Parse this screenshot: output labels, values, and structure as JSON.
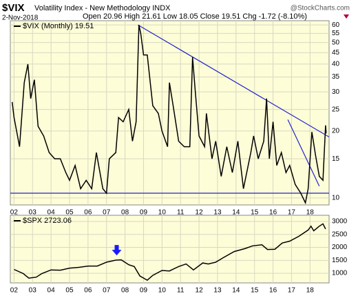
{
  "header": {
    "symbol": "$VIX",
    "name": "Volatility Index - New Methodology INDX",
    "date": "2-Nov-2018",
    "quote": "Open 20.96  High 21.61  Low 18.05  Close 19.51  Chg -1.72 (-8.10%)",
    "source": "@StockCharts.com"
  },
  "chart_data": [
    {
      "type": "line",
      "log_scale": true,
      "grid": true,
      "x": [
        2001.9,
        2002.0,
        2002.3,
        2002.55,
        2002.75,
        2002.9,
        2003.1,
        2003.3,
        2003.6,
        2003.9,
        2004.2,
        2004.5,
        2004.8,
        2005.0,
        2005.3,
        2005.6,
        2005.9,
        2006.2,
        2006.45,
        2006.8,
        2007.0,
        2007.15,
        2007.5,
        2007.65,
        2007.9,
        2008.2,
        2008.4,
        2008.6,
        2008.75,
        2008.85,
        2009.0,
        2009.2,
        2009.5,
        2009.8,
        2010.0,
        2010.3,
        2010.4,
        2010.6,
        2010.9,
        2011.2,
        2011.5,
        2011.65,
        2011.8,
        2012.0,
        2012.3,
        2012.4,
        2012.7,
        2012.9,
        2013.2,
        2013.5,
        2013.8,
        2014.1,
        2014.4,
        2014.8,
        2014.95,
        2015.2,
        2015.5,
        2015.65,
        2015.8,
        2016.0,
        2016.2,
        2016.45,
        2016.7,
        2016.9,
        2017.2,
        2017.5,
        2017.75,
        2017.9,
        2018.1,
        2018.3,
        2018.5,
        2018.7,
        2018.84,
        2018.87
      ],
      "series": [
        {
          "name": "$VIX (Monthly) 19.51",
          "color": "#000000",
          "values": [
            27,
            23,
            17,
            33,
            40,
            28,
            34,
            21,
            19,
            16,
            15,
            15,
            13,
            12,
            14,
            11,
            12,
            11,
            16,
            11,
            10.5,
            15,
            16,
            23,
            22,
            25,
            18,
            22,
            60,
            55,
            44,
            44,
            26,
            24,
            20,
            17,
            33,
            26,
            18,
            17,
            17,
            43,
            30,
            19,
            17,
            24,
            15,
            18,
            12.5,
            17,
            13,
            18,
            11,
            16,
            19,
            15,
            18,
            28,
            15,
            22,
            14,
            16,
            13,
            14,
            11.5,
            10.5,
            9.5,
            11,
            19.8,
            15.5,
            12.5,
            12,
            21.2,
            19.5
          ]
        }
      ],
      "xlim": [
        2001.8,
        2019.03
      ],
      "xticks": [
        {
          "value": 2002,
          "label": "02"
        },
        {
          "value": 2003,
          "label": "03"
        },
        {
          "value": 2004,
          "label": "04"
        },
        {
          "value": 2005,
          "label": "05"
        },
        {
          "value": 2006,
          "label": "06"
        },
        {
          "value": 2007,
          "label": "07"
        },
        {
          "value": 2008,
          "label": "08"
        },
        {
          "value": 2009,
          "label": "09"
        },
        {
          "value": 2010,
          "label": "10"
        },
        {
          "value": 2011,
          "label": "11"
        },
        {
          "value": 2012,
          "label": "12"
        },
        {
          "value": 2013,
          "label": "13"
        },
        {
          "value": 2014,
          "label": "14"
        },
        {
          "value": 2015,
          "label": "15"
        },
        {
          "value": 2016,
          "label": "16"
        },
        {
          "value": 2017,
          "label": "17"
        },
        {
          "value": 2018,
          "label": "18"
        }
      ],
      "ylim": [
        9.3,
        62.7
      ],
      "yticks": [
        10,
        15,
        20,
        25,
        30,
        35,
        40,
        45,
        50,
        55,
        60
      ],
      "trendlines": [
        {
          "color": "#2222cc",
          "x": [
            2008.7,
            2019.03
          ],
          "y": [
            60,
            18.8
          ]
        },
        {
          "color": "#2222cc",
          "x": [
            2016.8,
            2018.5
          ],
          "y": [
            22.5,
            11.3
          ]
        },
        {
          "color": "#2222cc",
          "x": [
            2001.8,
            2019.03
          ],
          "y": [
            10.5,
            10.5
          ]
        }
      ]
    },
    {
      "type": "line",
      "log_scale": false,
      "grid": true,
      "x": [
        2002.0,
        2002.5,
        2002.8,
        2003.2,
        2003.5,
        2004.0,
        2004.5,
        2005.0,
        2005.5,
        2006.0,
        2006.5,
        2007.0,
        2007.5,
        2007.8,
        2008.2,
        2008.5,
        2008.8,
        2009.2,
        2009.5,
        2010.0,
        2010.4,
        2010.9,
        2011.3,
        2011.7,
        2012.2,
        2012.5,
        2012.9,
        2013.3,
        2013.9,
        2014.5,
        2014.9,
        2015.4,
        2015.7,
        2016.1,
        2016.5,
        2016.9,
        2017.4,
        2017.9,
        2018.05,
        2018.2,
        2018.5,
        2018.7,
        2018.84
      ],
      "series": [
        {
          "name": "$SPX 2723.06",
          "color": "#000000",
          "values": [
            1150,
            990,
            815,
            850,
            990,
            1130,
            1120,
            1200,
            1230,
            1280,
            1280,
            1430,
            1510,
            1520,
            1330,
            1260,
            900,
            735,
            920,
            1110,
            1090,
            1260,
            1360,
            1130,
            1400,
            1360,
            1430,
            1600,
            1840,
            1960,
            2060,
            2100,
            1920,
            1930,
            2170,
            2240,
            2430,
            2670,
            2820,
            2640,
            2820,
            2910,
            2710
          ]
        }
      ],
      "xlim": [
        2001.8,
        2019.03
      ],
      "xticks": [
        {
          "value": 2002,
          "label": "02"
        },
        {
          "value": 2003,
          "label": "03"
        },
        {
          "value": 2004,
          "label": "04"
        },
        {
          "value": 2005,
          "label": "05"
        },
        {
          "value": 2006,
          "label": "06"
        },
        {
          "value": 2007,
          "label": "07"
        },
        {
          "value": 2008,
          "label": "08"
        },
        {
          "value": 2009,
          "label": "09"
        },
        {
          "value": 2010,
          "label": "10"
        },
        {
          "value": 2011,
          "label": "11"
        },
        {
          "value": 2012,
          "label": "12"
        },
        {
          "value": 2013,
          "label": "13"
        },
        {
          "value": 2014,
          "label": "14"
        },
        {
          "value": 2015,
          "label": "15"
        },
        {
          "value": 2016,
          "label": "16"
        },
        {
          "value": 2017,
          "label": "17"
        },
        {
          "value": 2018,
          "label": "18"
        }
      ],
      "ylim": [
        630,
        3240
      ],
      "yticks": [
        1000,
        1500,
        2000,
        2500,
        3000
      ],
      "arrow": {
        "x": 2007.55,
        "color": "#1a1aff"
      }
    }
  ]
}
